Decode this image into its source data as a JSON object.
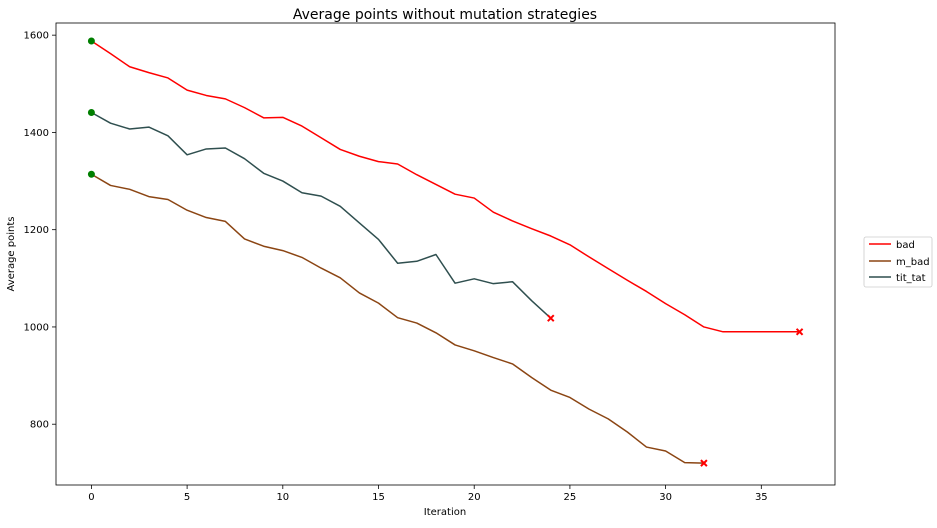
{
  "chart_data": {
    "type": "line",
    "title": "Average points without mutation strategies",
    "xlabel": "Iteration",
    "ylabel": "Average points",
    "xlim": [
      -1.85,
      38.85
    ],
    "ylim": [
      675,
      1625
    ],
    "xticks": [
      0,
      5,
      10,
      15,
      20,
      25,
      30,
      35
    ],
    "yticks": [
      800,
      1000,
      1200,
      1400,
      1600
    ],
    "grid": false,
    "legend_position": "right",
    "series": [
      {
        "name": "bad",
        "color": "#ff0000",
        "x": [
          0,
          1,
          2,
          3,
          4,
          5,
          6,
          7,
          8,
          9,
          10,
          11,
          12,
          13,
          14,
          15,
          16,
          17,
          18,
          19,
          20,
          21,
          22,
          23,
          24,
          25,
          26,
          27,
          28,
          29,
          30,
          31,
          32,
          33,
          34,
          35,
          36,
          37
        ],
        "values": [
          1588,
          1562,
          1535,
          1523,
          1512,
          1487,
          1476,
          1469,
          1451,
          1430,
          1431,
          1413,
          1389,
          1365,
          1351,
          1340,
          1335,
          1313,
          1293,
          1273,
          1265,
          1236,
          1218,
          1202,
          1187,
          1169,
          1144,
          1120,
          1096,
          1073,
          1048,
          1025,
          1000,
          990,
          990,
          990,
          990,
          990
        ]
      },
      {
        "name": "m_bad",
        "color": "#8b4513",
        "x": [
          0,
          1,
          2,
          3,
          4,
          5,
          6,
          7,
          8,
          9,
          10,
          11,
          12,
          13,
          14,
          15,
          16,
          17,
          18,
          19,
          20,
          21,
          22,
          23,
          24,
          25,
          26,
          27,
          28,
          29,
          30,
          31,
          32
        ],
        "values": [
          1314,
          1291,
          1283,
          1268,
          1262,
          1240,
          1225,
          1217,
          1181,
          1166,
          1157,
          1143,
          1121,
          1101,
          1070,
          1049,
          1019,
          1008,
          988,
          963,
          951,
          937,
          924,
          896,
          870,
          855,
          831,
          811,
          784,
          753,
          745,
          721,
          720
        ]
      },
      {
        "name": "tit_tat",
        "color": "#2f4f4f",
        "x": [
          0,
          1,
          2,
          3,
          4,
          5,
          6,
          7,
          8,
          9,
          10,
          11,
          12,
          13,
          14,
          15,
          16,
          17,
          18,
          19,
          20,
          21,
          22,
          23,
          24
        ],
        "values": [
          1441,
          1419,
          1407,
          1411,
          1393,
          1354,
          1366,
          1368,
          1346,
          1316,
          1300,
          1276,
          1269,
          1248,
          1214,
          1180,
          1131,
          1135,
          1149,
          1090,
          1099,
          1089,
          1093,
          1054,
          1018
        ]
      }
    ],
    "start_markers": {
      "color": "#007f00",
      "shape": "circle"
    },
    "end_markers": {
      "color": "#ff0000",
      "shape": "x"
    }
  }
}
